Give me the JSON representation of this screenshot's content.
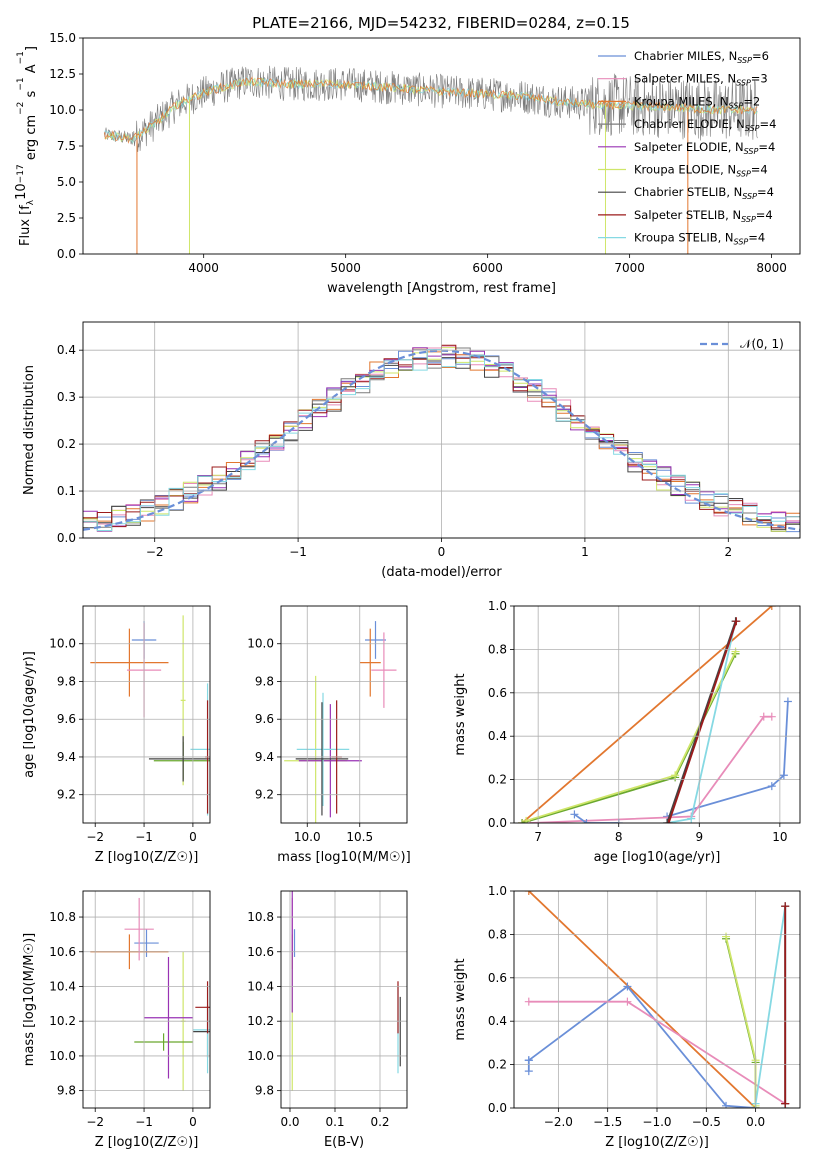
{
  "title": "PLATE=2166, MJD=54232, FIBERID=0284, z=0.15",
  "colors": {
    "blue": "#6a8fd8",
    "orange": "#e2772f",
    "pink": "#e88cb9",
    "gray": "#7b7b7b",
    "purple": "#9933b4",
    "yellowgreen": "#cfe66a",
    "darkgray": "#444444",
    "darkred": "#9b1b1b",
    "cyan": "#86d9e3",
    "green": "#6aa82f"
  },
  "chart_data": [
    {
      "id": "spectrum",
      "type": "line",
      "xlabel": "wavelength [Angstrom, rest frame]",
      "ylabel": "Flux [f",
      "ylabel_parts": [
        "Flux [f",
        "λ",
        "10",
        "−17",
        " erg cm",
        "−2",
        " s",
        "−1",
        " A",
        "−1",
        "]"
      ],
      "xlim": [
        3150,
        8200
      ],
      "ylim": [
        0,
        15
      ],
      "xticks": [
        "4000",
        "5000",
        "6000",
        "7000",
        "8000"
      ],
      "yticks": [
        "0.0",
        "2.5",
        "5.0",
        "7.5",
        "10.0",
        "12.5",
        "15.0"
      ],
      "grid": false,
      "legend_position": "top-right",
      "series": [
        {
          "name": "Chabrier MILES",
          "n": "6",
          "color": "blue"
        },
        {
          "name": "Salpeter MILES",
          "n": "3",
          "color": "pink"
        },
        {
          "name": "Kroupa MILES",
          "n": "2",
          "color": "orange"
        },
        {
          "name": "Chabrier ELODIE",
          "n": "4",
          "color": "gray"
        },
        {
          "name": "Salpeter ELODIE",
          "n": "4",
          "color": "purple"
        },
        {
          "name": "Kroupa ELODIE",
          "n": "4",
          "color": "yellowgreen"
        },
        {
          "name": "Chabrier STELIB",
          "n": "4",
          "color": "darkgray"
        },
        {
          "name": "Salpeter STELIB",
          "n": "4",
          "color": "darkred"
        },
        {
          "name": "Kroupa STELIB",
          "n": "4",
          "color": "cyan"
        }
      ],
      "nssp_label": "N",
      "nssp_sub": "SSP",
      "continuum": {
        "x": [
          3300,
          3500,
          3650,
          3800,
          3950,
          4100,
          4300,
          4600,
          5000,
          5400,
          5800,
          6200,
          6500,
          6700,
          7000,
          7300,
          7600,
          7900
        ],
        "y": [
          8.3,
          8.0,
          9.0,
          10.3,
          11.0,
          11.5,
          12.0,
          11.8,
          11.8,
          11.5,
          11.2,
          11.0,
          10.6,
          10.4,
          10.3,
          10.2,
          10.0,
          10.0
        ]
      }
    },
    {
      "id": "residuals",
      "type": "histogram",
      "xlabel": "(data-model)/error",
      "ylabel": "Normed distribution",
      "xlim": [
        -2.5,
        2.5
      ],
      "ylim": [
        0,
        0.46
      ],
      "xticks": [
        "−2",
        "−1",
        "0",
        "1",
        "2"
      ],
      "yticks": [
        "0.0",
        "0.1",
        "0.2",
        "0.3",
        "0.4"
      ],
      "grid": true,
      "legend": "𝒩(0, 1)",
      "legend_position": "top-right",
      "bin_width": 0.1,
      "bin_start": -2.5
    },
    {
      "id": "age_vs_Z",
      "type": "scatter",
      "xlabel": "Z [log10(Z/Z☉)]",
      "ylabel": "age  [log10(age/yr)]",
      "xlim": [
        -2.25,
        0.35
      ],
      "ylim": [
        9.05,
        10.2
      ],
      "xticks": [
        "−2",
        "−1",
        "0"
      ],
      "yticks": [
        "9.2",
        "9.4",
        "9.6",
        "9.8",
        "10.0"
      ],
      "grid": true,
      "points": [
        {
          "color": "blue",
          "x": -1.0,
          "y": 10.02,
          "xerr": 0.25,
          "yerr": 0.1
        },
        {
          "color": "orange",
          "x": -1.3,
          "y": 9.9,
          "xerr": 0.8,
          "yerr": 0.18
        },
        {
          "color": "pink",
          "x": -1.0,
          "y": 9.86,
          "xerr": 0.35,
          "yerr": 0.25
        },
        {
          "color": "yellowgreen",
          "x": -0.2,
          "y": 9.7,
          "xerr": 0.05,
          "yerr": 0.45
        },
        {
          "color": "green",
          "x": -0.2,
          "y": 9.38,
          "xerr": 0.6,
          "yerr": 0.1
        },
        {
          "color": "darkgray",
          "x": -0.2,
          "y": 9.39,
          "xerr": 0.7,
          "yerr": 0.12
        },
        {
          "color": "cyan",
          "x": 0.3,
          "y": 9.44,
          "xerr": 0.35,
          "yerr": 0.35
        },
        {
          "color": "darkred",
          "x": 0.3,
          "y": 9.4,
          "xerr": 0.05,
          "yerr": 0.3
        }
      ]
    },
    {
      "id": "age_vs_mass",
      "type": "scatter",
      "xlabel": "mass [log10(M/M☉)]",
      "ylabel": "",
      "xlim": [
        9.75,
        10.95
      ],
      "ylim": [
        9.05,
        10.2
      ],
      "xticks": [
        "10.0",
        "10.5"
      ],
      "yticks": [
        "9.2",
        "9.4",
        "9.6",
        "9.8",
        "10.0"
      ],
      "grid": true,
      "points": [
        {
          "color": "blue",
          "x": 10.65,
          "y": 10.02,
          "xerr": 0.1,
          "yerr": 0.1
        },
        {
          "color": "orange",
          "x": 10.6,
          "y": 9.9,
          "xerr": 0.1,
          "yerr": 0.18
        },
        {
          "color": "pink",
          "x": 10.73,
          "y": 9.86,
          "xerr": 0.12,
          "yerr": 0.2
        },
        {
          "color": "yellowgreen",
          "x": 10.08,
          "y": 9.38,
          "xerr": 0.3,
          "yerr": 0.45
        },
        {
          "color": "purple",
          "x": 10.22,
          "y": 9.38,
          "xerr": 0.3,
          "yerr": 0.3
        },
        {
          "color": "cyan",
          "x": 10.15,
          "y": 9.44,
          "xerr": 0.25,
          "yerr": 0.3
        },
        {
          "color": "darkgray",
          "x": 10.14,
          "y": 9.39,
          "xerr": 0.25,
          "yerr": 0.3
        },
        {
          "color": "darkred",
          "x": 10.28,
          "y": 9.4,
          "xerr": 0.05,
          "yerr": 0.3
        }
      ]
    },
    {
      "id": "massweight_vs_age",
      "type": "line",
      "xlabel": "age  [log10(age/yr)]",
      "ylabel": "mass weight",
      "xlim": [
        6.7,
        10.25
      ],
      "ylim": [
        0,
        1
      ],
      "xticks": [
        "7",
        "8",
        "9",
        "10"
      ],
      "yticks": [
        "0.0",
        "0.2",
        "0.4",
        "0.6",
        "0.8",
        "1.0"
      ],
      "grid": true,
      "series": [
        {
          "color": "orange",
          "x": [
            6.8,
            9.9
          ],
          "y": [
            0.0,
            1.0
          ]
        },
        {
          "color": "blue",
          "x": [
            8.6,
            9.9,
            10.05,
            10.1
          ],
          "y": [
            0.03,
            0.17,
            0.22,
            0.56
          ]
        },
        {
          "color": "pink",
          "x": [
            6.9,
            8.9,
            9.8,
            9.9
          ],
          "y": [
            0.0,
            0.03,
            0.49,
            0.49
          ]
        },
        {
          "color": "green",
          "x": [
            6.8,
            8.7,
            9.45
          ],
          "y": [
            0.0,
            0.21,
            0.78
          ]
        },
        {
          "color": "yellowgreen",
          "x": [
            6.85,
            8.7,
            9.45
          ],
          "y": [
            0.01,
            0.22,
            0.79
          ]
        },
        {
          "color": "cyan",
          "x": [
            8.6,
            8.9,
            9.45
          ],
          "y": [
            0.0,
            0.02,
            0.93
          ]
        },
        {
          "color": "darkgray",
          "x": [
            8.6,
            9.45
          ],
          "y": [
            0.0,
            0.93
          ]
        },
        {
          "color": "darkred",
          "x": [
            8.62,
            9.46
          ],
          "y": [
            0.0,
            0.93
          ]
        },
        {
          "color": "blue",
          "x": [
            7.45,
            7.6,
            8.0
          ],
          "y": [
            0.04,
            0.0,
            0.0
          ]
        }
      ]
    },
    {
      "id": "mass_vs_Z",
      "type": "scatter",
      "xlabel": "Z [log10(Z/Z☉)]",
      "ylabel": "mass [log10(M/M☉)]",
      "xlim": [
        -2.25,
        0.35
      ],
      "ylim": [
        9.7,
        10.95
      ],
      "xticks": [
        "−2",
        "−1",
        "0"
      ],
      "yticks": [
        "9.8",
        "10.0",
        "10.2",
        "10.4",
        "10.6",
        "10.8"
      ],
      "grid": true,
      "points": [
        {
          "color": "blue",
          "x": -0.95,
          "y": 10.65,
          "xerr": 0.25,
          "yerr": 0.08
        },
        {
          "color": "orange",
          "x": -1.3,
          "y": 10.6,
          "xerr": 0.8,
          "yerr": 0.1
        },
        {
          "color": "pink",
          "x": -1.1,
          "y": 10.73,
          "xerr": 0.3,
          "yerr": 0.18
        },
        {
          "color": "yellowgreen",
          "x": -0.2,
          "y": 10.2,
          "xerr": 0.05,
          "yerr": 0.4
        },
        {
          "color": "green",
          "x": -0.6,
          "y": 10.08,
          "xerr": 0.6,
          "yerr": 0.05
        },
        {
          "color": "purple",
          "x": -0.5,
          "y": 10.22,
          "xerr": 0.5,
          "yerr": 0.35
        },
        {
          "color": "darkgray",
          "x": 0.3,
          "y": 10.14,
          "xerr": 0.3,
          "yerr": 0.15
        },
        {
          "color": "cyan",
          "x": 0.3,
          "y": 10.15,
          "xerr": 0.3,
          "yerr": 0.25
        },
        {
          "color": "darkred",
          "x": 0.3,
          "y": 10.28,
          "xerr": 0.25,
          "yerr": 0.15
        }
      ]
    },
    {
      "id": "mass_vs_ebv",
      "type": "scatter",
      "xlabel": "E(B-V)",
      "ylabel": "",
      "xlim": [
        -0.02,
        0.26
      ],
      "ylim": [
        9.7,
        10.95
      ],
      "xticks": [
        "0.0",
        "0.1",
        "0.2"
      ],
      "yticks": [
        "9.8",
        "10.0",
        "10.2",
        "10.4",
        "10.6",
        "10.8"
      ],
      "grid": true,
      "points": [
        {
          "color": "blue",
          "x": 0.01,
          "y": 10.65,
          "xerr": 0.0,
          "yerr": 0.08
        },
        {
          "color": "orange",
          "x": 0.005,
          "y": 10.6,
          "xerr": 0.0,
          "yerr": 0.1
        },
        {
          "color": "pink",
          "x": 0.005,
          "y": 10.73,
          "xerr": 0.0,
          "yerr": 0.18
        },
        {
          "color": "yellowgreen",
          "x": 0.005,
          "y": 10.2,
          "xerr": 0.0,
          "yerr": 0.4
        },
        {
          "color": "purple",
          "x": 0.005,
          "y": 10.6,
          "xerr": 0.0,
          "yerr": 0.35
        },
        {
          "color": "darkgray",
          "x": 0.245,
          "y": 10.14,
          "xerr": 0.0,
          "yerr": 0.2
        },
        {
          "color": "cyan",
          "x": 0.24,
          "y": 10.15,
          "xerr": 0.0,
          "yerr": 0.25
        },
        {
          "color": "darkred",
          "x": 0.24,
          "y": 10.28,
          "xerr": 0.0,
          "yerr": 0.15
        }
      ]
    },
    {
      "id": "massweight_vs_Z",
      "type": "line",
      "xlabel": "Z [log10(Z/Z☉)]",
      "ylabel": "mass weight",
      "xlim": [
        -2.45,
        0.45
      ],
      "ylim": [
        0,
        1
      ],
      "xticks": [
        "−2.0",
        "−1.5",
        "−1.0",
        "−0.5",
        "0.0"
      ],
      "yticks": [
        "0.0",
        "0.2",
        "0.4",
        "0.6",
        "0.8",
        "1.0"
      ],
      "grid": true,
      "series": [
        {
          "color": "orange",
          "x": [
            -2.3,
            0.0
          ],
          "y": [
            1.0,
            0.0
          ]
        },
        {
          "color": "blue",
          "x": [
            -2.3,
            -1.3,
            -0.3,
            0.0
          ],
          "y": [
            0.22,
            0.56,
            0.01,
            0.0
          ]
        },
        {
          "color": "blue",
          "x": [
            -2.3,
            -2.3
          ],
          "y": [
            0.17,
            0.22
          ]
        },
        {
          "color": "pink",
          "x": [
            -2.3,
            -1.3,
            0.3
          ],
          "y": [
            0.49,
            0.49,
            0.02
          ]
        },
        {
          "color": "green",
          "x": [
            -0.3,
            0.0,
            0.0
          ],
          "y": [
            0.78,
            0.21,
            0.0
          ]
        },
        {
          "color": "yellowgreen",
          "x": [
            -0.3,
            0.0,
            0.0
          ],
          "y": [
            0.79,
            0.22,
            0.01
          ]
        },
        {
          "color": "cyan",
          "x": [
            0.0,
            0.3,
            0.3
          ],
          "y": [
            0.02,
            0.93,
            0.0
          ]
        },
        {
          "color": "darkgray",
          "x": [
            0.3,
            0.3
          ],
          "y": [
            0.93,
            0.02
          ]
        },
        {
          "color": "darkred",
          "x": [
            0.3,
            0.3
          ],
          "y": [
            0.93,
            0.02
          ]
        }
      ]
    }
  ]
}
